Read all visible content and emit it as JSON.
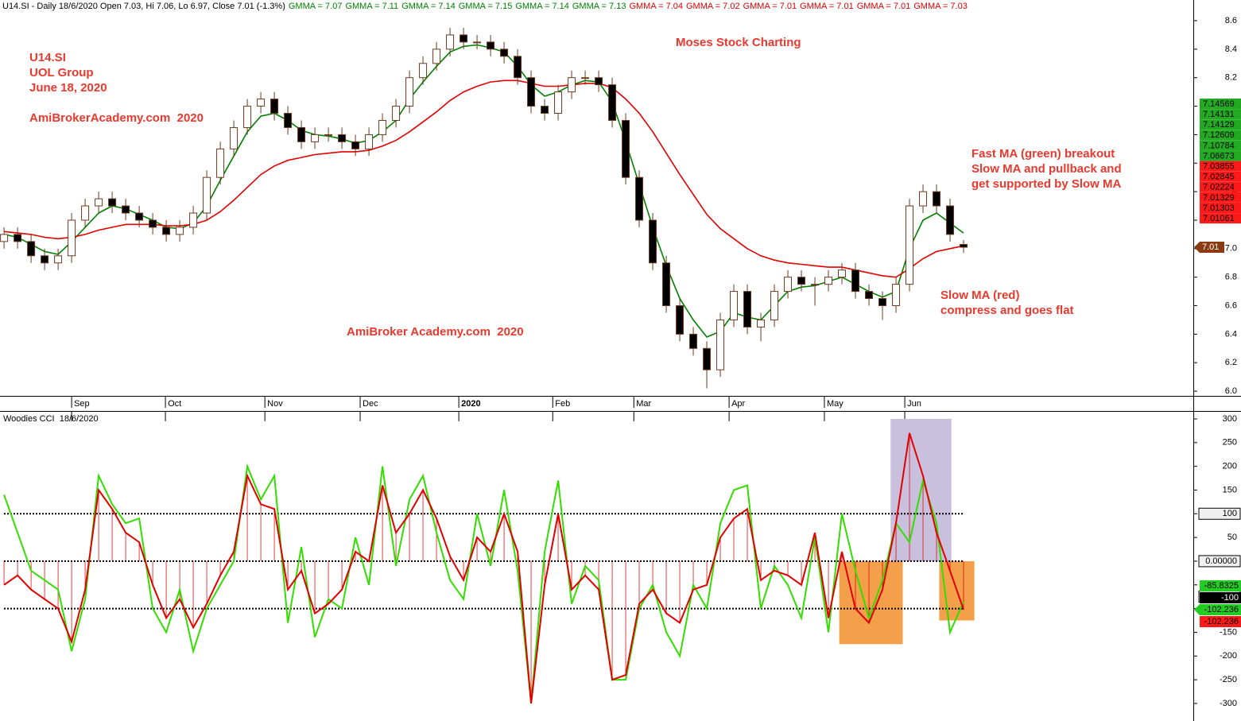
{
  "chart_data": [
    {
      "type": "candlestick",
      "header": "U14.SI - Daily 18/6/2020 Open 7.03, Hi 7.06, Lo 6.97, Close 7.01 (-1.3%)",
      "gmma_labels": [
        {
          "text": "GMMA = 7.07",
          "color": "#008000"
        },
        {
          "text": "GMMA = 7.11",
          "color": "#008000"
        },
        {
          "text": "GMMA = 7.14",
          "color": "#008000"
        },
        {
          "text": "GMMA = 7.15",
          "color": "#008000"
        },
        {
          "text": "GMMA = 7.14",
          "color": "#008000"
        },
        {
          "text": "GMMA = 7.13",
          "color": "#008000"
        },
        {
          "text": "GMMA = 7.04",
          "color": "#e00000"
        },
        {
          "text": "GMMA = 7.02",
          "color": "#e00000"
        },
        {
          "text": "GMMA = 7.01",
          "color": "#e00000"
        },
        {
          "text": "GMMA = 7.01",
          "color": "#e00000"
        },
        {
          "text": "GMMA = 7.01",
          "color": "#e00000"
        },
        {
          "text": "GMMA = 7.03",
          "color": "#e00000"
        }
      ],
      "annotations": [
        "U14.SI",
        "UOL Group",
        "June 18, 2020",
        "AmiBrokerAcademy.com  2020",
        "Moses Stock Charting",
        "AmiBroker Academy.com  2020",
        "Fast MA (green) breakout",
        "Slow MA and pullback and",
        "get supported by Slow MA",
        "Slow MA (red)",
        "compress and goes flat"
      ],
      "annotation_color": "#e8392e",
      "categories": [
        null,
        null,
        null,
        null,
        null,
        null,
        null,
        null,
        null,
        null,
        null,
        null,
        null,
        null,
        null,
        null,
        null,
        null,
        null,
        null,
        null,
        null,
        null,
        null,
        null,
        null,
        null,
        null,
        null,
        null,
        null,
        null,
        null,
        null,
        null,
        null,
        null,
        null,
        null,
        null,
        null,
        null,
        null,
        null,
        null,
        null,
        null,
        null,
        null,
        null,
        null,
        null,
        null,
        null,
        null,
        null,
        null,
        null,
        null,
        null,
        null,
        null,
        null,
        null,
        null,
        null,
        null,
        null,
        null,
        null,
        null,
        null
      ],
      "xlim": [
        -0.3,
        87.94
      ],
      "xticks": [
        {
          "value": 5,
          "label": "Sep"
        },
        {
          "value": 11.94,
          "label": "Oct"
        },
        {
          "value": 19.3,
          "label": "Nov"
        },
        {
          "value": 26.35,
          "label": "Dec"
        },
        {
          "value": 33.65,
          "label": "2020"
        },
        {
          "value": 40.6,
          "label": "Feb"
        },
        {
          "value": 46.6,
          "label": "Mar"
        },
        {
          "value": 53.65,
          "label": "Apr"
        },
        {
          "value": 60.7,
          "label": "May"
        },
        {
          "value": 66.65,
          "label": "Jun"
        }
      ],
      "open": [
        7.05,
        7.1,
        7.05,
        6.95,
        6.9,
        6.95,
        7.2,
        7.3,
        7.35,
        7.3,
        7.25,
        7.2,
        7.15,
        7.1,
        7.15,
        7.25,
        7.5,
        7.7,
        7.85,
        8.0,
        8.05,
        7.95,
        7.85,
        7.75,
        7.8,
        7.8,
        7.75,
        7.7,
        7.8,
        7.9,
        8.0,
        8.2,
        8.3,
        8.4,
        8.5,
        8.45,
        8.45,
        8.4,
        8.35,
        8.2,
        8.0,
        7.95,
        8.1,
        8.2,
        8.2,
        8.15,
        7.9,
        7.5,
        7.2,
        6.9,
        6.6,
        6.4,
        6.3,
        6.15,
        6.5,
        6.7,
        6.45,
        6.5,
        6.7,
        6.8,
        6.75,
        6.75,
        6.8,
        6.85,
        6.7,
        6.65,
        6.6,
        6.75,
        7.3,
        7.4,
        7.3,
        7.03
      ],
      "high": [
        7.15,
        7.15,
        7.1,
        7.0,
        7.0,
        7.25,
        7.35,
        7.4,
        7.4,
        7.35,
        7.3,
        7.25,
        7.2,
        7.2,
        7.3,
        7.55,
        7.75,
        7.9,
        8.05,
        8.1,
        8.1,
        8.0,
        7.9,
        7.85,
        7.85,
        7.85,
        7.8,
        7.85,
        7.95,
        8.05,
        8.25,
        8.35,
        8.45,
        8.55,
        8.55,
        8.5,
        8.5,
        8.45,
        8.4,
        8.25,
        8.05,
        8.15,
        8.25,
        8.25,
        8.25,
        8.2,
        7.95,
        7.55,
        7.25,
        6.95,
        6.65,
        6.45,
        6.35,
        6.55,
        6.75,
        6.75,
        6.55,
        6.75,
        6.85,
        6.85,
        6.8,
        6.85,
        6.9,
        6.9,
        6.75,
        6.7,
        6.8,
        7.35,
        7.45,
        7.45,
        7.35,
        7.06
      ],
      "low": [
        7.0,
        7.0,
        6.9,
        6.85,
        6.85,
        6.9,
        7.15,
        7.25,
        7.25,
        7.2,
        7.15,
        7.1,
        7.05,
        7.05,
        7.1,
        7.2,
        7.45,
        7.65,
        7.8,
        7.95,
        7.9,
        7.8,
        7.7,
        7.7,
        7.75,
        7.7,
        7.65,
        7.65,
        7.75,
        7.85,
        7.95,
        8.15,
        8.25,
        8.35,
        8.4,
        8.4,
        8.35,
        8.3,
        8.15,
        7.95,
        7.9,
        7.9,
        8.05,
        8.15,
        8.1,
        7.85,
        7.45,
        7.15,
        6.85,
        6.55,
        6.35,
        6.25,
        6.02,
        6.1,
        6.45,
        6.4,
        6.35,
        6.45,
        6.65,
        6.7,
        6.6,
        6.7,
        6.75,
        6.65,
        6.6,
        6.5,
        6.55,
        6.7,
        7.25,
        7.25,
        7.05,
        6.97
      ],
      "close": [
        7.1,
        7.05,
        6.95,
        6.9,
        6.95,
        7.2,
        7.3,
        7.35,
        7.3,
        7.25,
        7.2,
        7.15,
        7.1,
        7.15,
        7.25,
        7.5,
        7.7,
        7.85,
        8.0,
        8.05,
        7.95,
        7.85,
        7.75,
        7.8,
        7.8,
        7.75,
        7.7,
        7.8,
        7.9,
        8.0,
        8.2,
        8.3,
        8.4,
        8.5,
        8.45,
        8.45,
        8.4,
        8.35,
        8.2,
        8.0,
        7.95,
        8.1,
        8.2,
        8.2,
        8.15,
        7.9,
        7.5,
        7.2,
        6.9,
        6.6,
        6.4,
        6.3,
        6.15,
        6.5,
        6.7,
        6.45,
        6.5,
        6.7,
        6.8,
        6.75,
        6.75,
        6.8,
        6.85,
        6.7,
        6.65,
        6.6,
        6.75,
        7.3,
        7.4,
        7.3,
        7.1,
        7.01
      ],
      "candle_colors": {
        "up": "#ffffff",
        "down": "#000000",
        "outline": "#6b3a1f"
      },
      "series": [
        {
          "color": "#008000",
          "values": [
            7.1,
            7.08,
            7.03,
            6.98,
            6.96,
            7.05,
            7.15,
            7.25,
            7.3,
            7.28,
            7.24,
            7.2,
            7.15,
            7.14,
            7.18,
            7.3,
            7.48,
            7.65,
            7.82,
            7.93,
            7.95,
            7.9,
            7.83,
            7.8,
            7.79,
            7.77,
            7.74,
            7.76,
            7.82,
            7.9,
            8.05,
            8.17,
            8.28,
            8.38,
            8.42,
            8.43,
            8.41,
            8.38,
            8.28,
            8.15,
            8.07,
            8.1,
            8.15,
            8.18,
            8.17,
            8.03,
            7.75,
            7.45,
            7.15,
            6.88,
            6.65,
            6.5,
            6.38,
            6.42,
            6.55,
            6.52,
            6.5,
            6.6,
            6.7,
            6.73,
            6.74,
            6.77,
            6.8,
            6.75,
            6.7,
            6.66,
            6.7,
            7.0,
            7.2,
            7.25,
            7.18,
            7.11
          ]
        },
        {
          "color": "#e00000",
          "values": [
            7.12,
            7.11,
            7.1,
            7.08,
            7.07,
            7.08,
            7.1,
            7.13,
            7.15,
            7.17,
            7.17,
            7.17,
            7.16,
            7.16,
            7.17,
            7.2,
            7.26,
            7.34,
            7.43,
            7.52,
            7.58,
            7.62,
            7.64,
            7.66,
            7.67,
            7.68,
            7.68,
            7.69,
            7.72,
            7.76,
            7.82,
            7.89,
            7.96,
            8.04,
            8.1,
            8.14,
            8.17,
            8.18,
            8.18,
            8.16,
            8.14,
            8.14,
            8.15,
            8.16,
            8.16,
            8.13,
            8.05,
            7.95,
            7.82,
            7.67,
            7.52,
            7.38,
            7.24,
            7.14,
            7.07,
            7.0,
            6.95,
            6.92,
            6.9,
            6.89,
            6.88,
            6.87,
            6.87,
            6.85,
            6.83,
            6.81,
            6.8,
            6.86,
            6.93,
            6.98,
            7.0,
            7.02
          ]
        }
      ],
      "ylim": [
        5.967,
        8.745
      ],
      "yticks": [
        {
          "value": 6,
          "label": "6.0"
        },
        6.2,
        6.4,
        6.6,
        6.8,
        {
          "value": 7,
          "label": "7.0"
        },
        7.2,
        7.4,
        7.6,
        7.8,
        {
          "value": 8,
          "label": "8.0"
        },
        8.2,
        8.4,
        8.6
      ],
      "last_labels": [
        {
          "value": 7.14569,
          "color": "#22aa22"
        },
        {
          "value": 7.14131,
          "color": "#22aa22"
        },
        {
          "value": 7.14129,
          "color": "#22aa22"
        },
        {
          "value": 7.12609,
          "color": "#22aa22"
        },
        {
          "value": 7.10784,
          "color": "#22aa22"
        },
        {
          "value": 7.06673,
          "color": "#22aa22"
        },
        {
          "value": 7.03855,
          "color": "#ff1a1a"
        },
        {
          "value": 7.02845,
          "color": "#ff1a1a"
        },
        {
          "value": 7.02224,
          "color": "#ff1a1a"
        },
        {
          "value": 7.01329,
          "color": "#ff1a1a"
        },
        {
          "value": 7.01303,
          "color": "#ff1a1a"
        },
        {
          "value": 7.01061,
          "color": "#ff1a1a"
        }
      ],
      "last_price": {
        "value": 7.01,
        "color": "#8b3a12"
      }
    },
    {
      "type": "line",
      "title": "Woodies CCI  18/6/2020",
      "xlim": [
        -0.3,
        87.94
      ],
      "ylim": [
        -337,
        315
      ],
      "yticks": [
        300,
        250,
        200,
        150,
        100,
        50,
        0,
        -50,
        -100,
        -150,
        -200,
        -250,
        -300
      ],
      "levels": [
        100,
        {
          "value": 0,
          "label": "0.00000"
        },
        -100
      ],
      "series": [
        {
          "color": "#33dd00",
          "values": [
            140,
            60,
            -20,
            -40,
            -60,
            -190,
            -80,
            180,
            120,
            80,
            90,
            -100,
            -150,
            -60,
            -190,
            -100,
            -50,
            0,
            200,
            130,
            180,
            -130,
            30,
            -160,
            -80,
            -100,
            50,
            -50,
            200,
            -10,
            130,
            180,
            60,
            -40,
            -80,
            100,
            -10,
            150,
            -20,
            -300,
            20,
            170,
            -90,
            -10,
            -40,
            -250,
            -250,
            -100,
            -50,
            -150,
            -200,
            -50,
            -100,
            80,
            150,
            160,
            -100,
            -10,
            -50,
            -120,
            50,
            -150,
            100,
            -20,
            -120,
            -40,
            80,
            40,
            170,
            80,
            -150,
            -85.8325
          ]
        },
        {
          "color": "#e00000",
          "bars": true,
          "values": [
            -50,
            -30,
            -60,
            -80,
            -100,
            -170,
            -60,
            150,
            110,
            60,
            40,
            -50,
            -120,
            -80,
            -140,
            -90,
            -30,
            20,
            180,
            120,
            110,
            -60,
            -20,
            -110,
            -90,
            -60,
            20,
            0,
            160,
            60,
            100,
            150,
            90,
            10,
            -40,
            50,
            20,
            100,
            20,
            -300,
            -50,
            100,
            -60,
            -30,
            -60,
            -250,
            -240,
            -90,
            -60,
            -110,
            -130,
            -60,
            -50,
            50,
            90,
            110,
            -40,
            -20,
            -30,
            -50,
            60,
            -120,
            20,
            -100,
            -130,
            -60,
            80,
            270,
            180,
            60,
            -20,
            -102.236
          ]
        }
      ],
      "shading": [
        {
          "x": [
            65.6,
            70.1
          ],
          "y": [
            0,
            300
          ],
          "color": "#c9c0dd"
        },
        {
          "x": [
            61.8,
            66.5
          ],
          "y": [
            -175,
            0
          ],
          "color": "#f4a04a"
        },
        {
          "x": [
            69.2,
            71.8
          ],
          "y": [
            -125,
            0
          ],
          "color": "#f4a04a"
        }
      ],
      "last_labels": [
        {
          "value": -85.8325,
          "color": "#22cc22"
        },
        {
          "value": -100,
          "color": "#000000"
        },
        {
          "value": -102.236,
          "color": "#22cc22"
        },
        {
          "value": -102.236,
          "color": "#ff1a1a"
        }
      ]
    }
  ]
}
